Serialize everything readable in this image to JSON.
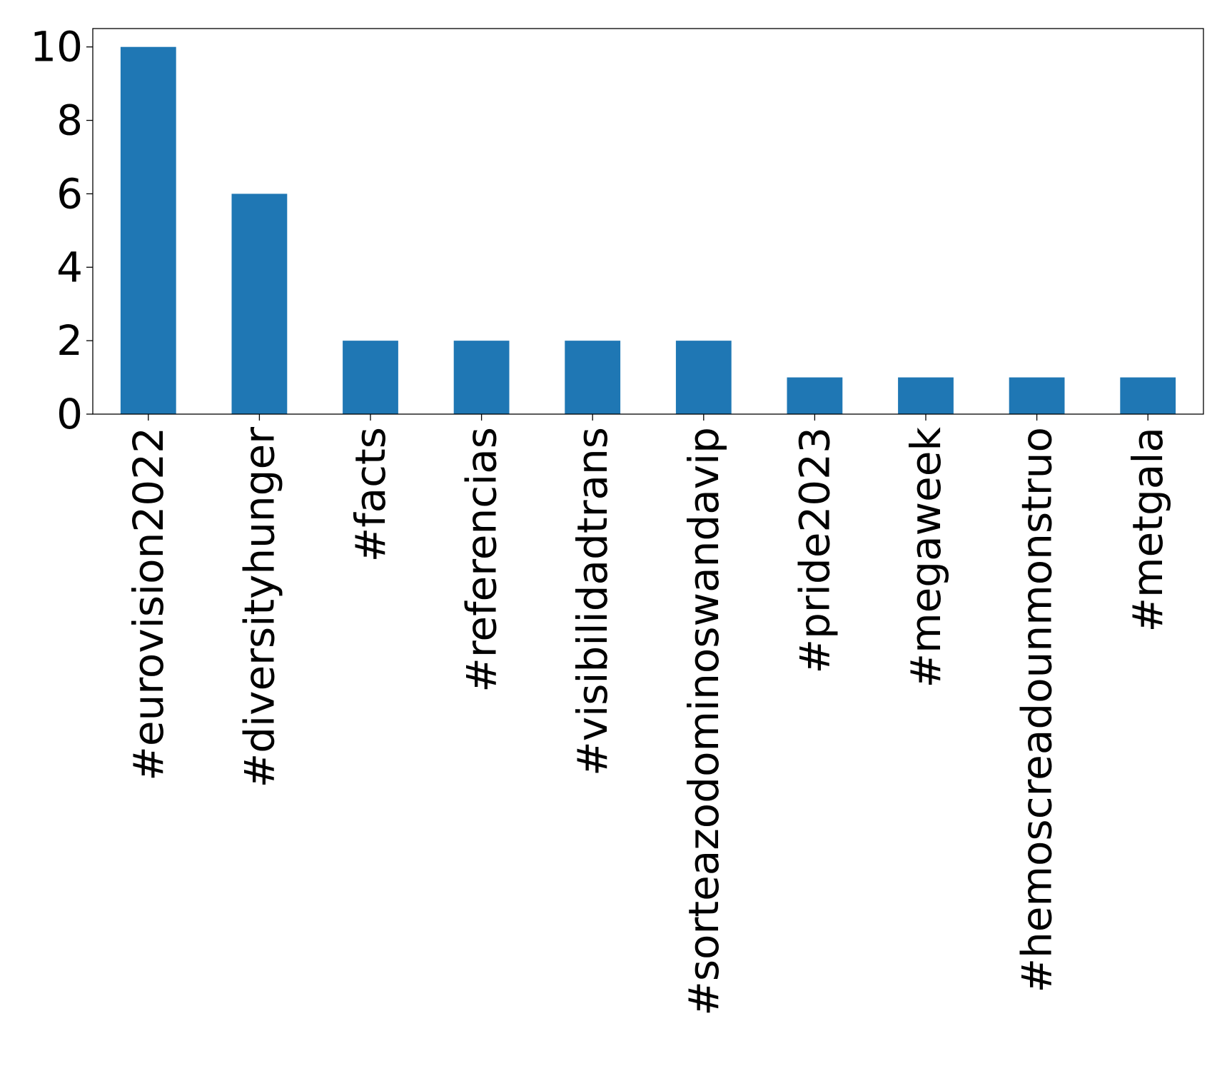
{
  "chart_data": {
    "type": "bar",
    "title": "",
    "xlabel": "",
    "ylabel": "",
    "categories": [
      "#eurovision2022",
      "#diversityhunger",
      "#facts",
      "#referencias",
      "#visibilidadtrans",
      "#sorteazodominoswandavip",
      "#pride2023",
      "#megaweek",
      "#hemoscreadounmonstruo",
      "#metgala"
    ],
    "values": [
      10,
      6,
      2,
      2,
      2,
      2,
      1,
      1,
      1,
      1
    ],
    "ylim": [
      0,
      10.5
    ],
    "yticks": [
      0,
      2,
      4,
      6,
      8,
      10
    ],
    "bar_color": "#1f77b4",
    "grid": false,
    "legend": "none",
    "x_tick_rotation": "vertical"
  }
}
